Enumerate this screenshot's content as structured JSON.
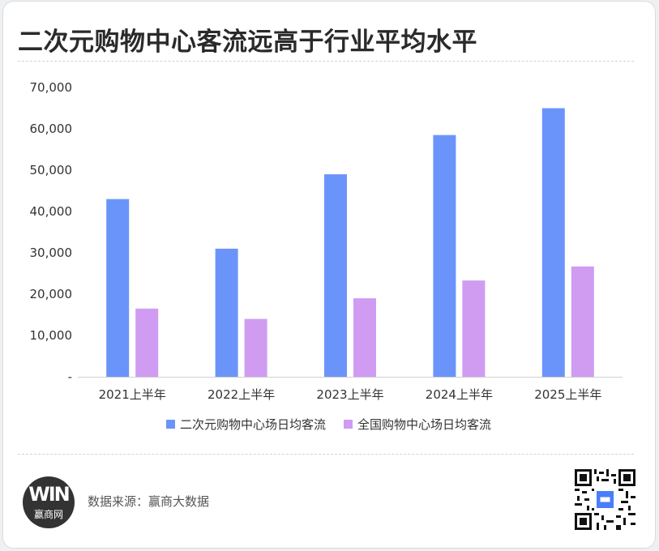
{
  "title": "二次元购物中心客流远高于行业平均水平",
  "source_text": "数据来源：赢商大数据",
  "logo": {
    "mark": "WIN",
    "name": "赢商网"
  },
  "qr_icon": "qr-code-icon",
  "colors": {
    "series1": "#6b94fb",
    "series2": "#cf9cf2",
    "axis": "#d0d0d0"
  },
  "chart_data": {
    "type": "bar",
    "title": "二次元购物中心客流远高于行业平均水平",
    "categories": [
      "2021上半年",
      "2022上半年",
      "2023上半年",
      "2024上半年",
      "2025上半年"
    ],
    "series": [
      {
        "name": "二次元购物中心场日均客流",
        "values": [
          43000,
          31000,
          49000,
          58500,
          65000
        ]
      },
      {
        "name": "全国购物中心场日均客流",
        "values": [
          16500,
          14000,
          19000,
          23300,
          26700
        ]
      }
    ],
    "ylim": [
      0,
      70000
    ],
    "yticks": [
      "-",
      "10,000",
      "20,000",
      "30,000",
      "40,000",
      "50,000",
      "60,000",
      "70,000"
    ],
    "xlabel": "",
    "ylabel": "",
    "grid": false,
    "legend": "bottom"
  }
}
